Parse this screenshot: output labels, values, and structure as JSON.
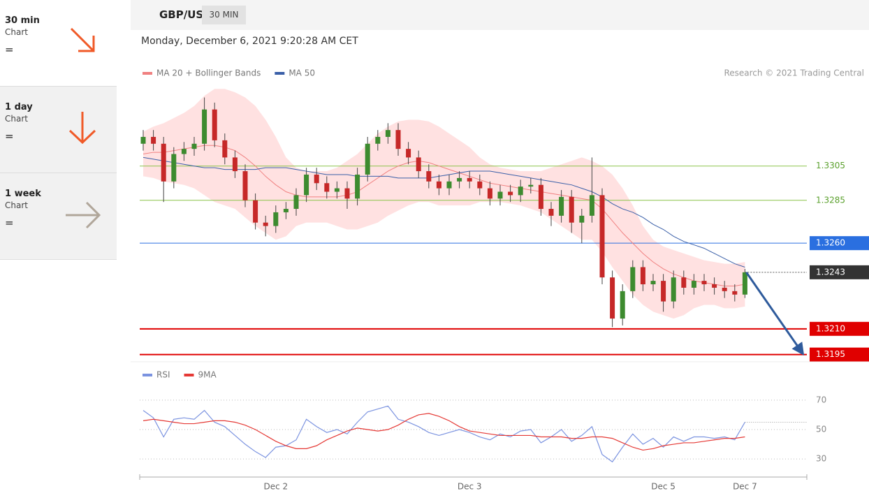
{
  "sidebar": {
    "items": [
      {
        "period": "30 min",
        "label": "Chart",
        "sign": "="
      },
      {
        "period": "1 day",
        "label": "Chart",
        "sign": "="
      },
      {
        "period": "1 week",
        "label": "Chart",
        "sign": "="
      }
    ]
  },
  "header": {
    "symbol": "GBP/USD",
    "interval": "30 MIN",
    "timestamp": "Monday, December 6, 2021 9:20:28 AM CET",
    "source": "Research © 2021 Trading Central"
  },
  "chart_data": [
    {
      "type": "candlestick",
      "ylim": [
        1.3192,
        1.3355
      ],
      "open": [
        1.3318,
        1.3322,
        1.3318,
        1.3296,
        1.3312,
        1.3315,
        1.3318,
        1.3338,
        1.332,
        1.331,
        1.3302,
        1.3285,
        1.3272,
        1.327,
        1.3278,
        1.328,
        1.3288,
        1.33,
        1.3295,
        1.329,
        1.3292,
        1.3286,
        1.33,
        1.3318,
        1.3322,
        1.3326,
        1.3315,
        1.331,
        1.3302,
        1.3296,
        1.3292,
        1.3296,
        1.3298,
        1.3296,
        1.3292,
        1.3286,
        1.329,
        1.3288,
        1.3293,
        1.3294,
        1.328,
        1.3276,
        1.3287,
        1.3272,
        1.3276,
        1.3288,
        1.324,
        1.3216,
        1.3232,
        1.3246,
        1.3236,
        1.3238,
        1.3226,
        1.324,
        1.3234,
        1.3238,
        1.3236,
        1.3234,
        1.3232,
        1.323
      ],
      "high": [
        1.3326,
        1.3326,
        1.3322,
        1.3316,
        1.3319,
        1.3322,
        1.3345,
        1.3342,
        1.3324,
        1.3314,
        1.3306,
        1.3289,
        1.3276,
        1.3282,
        1.3284,
        1.3292,
        1.3304,
        1.3304,
        1.3299,
        1.3296,
        1.3296,
        1.3304,
        1.3322,
        1.3326,
        1.333,
        1.333,
        1.3319,
        1.3314,
        1.3306,
        1.33,
        1.33,
        1.3302,
        1.3302,
        1.33,
        1.3296,
        1.3294,
        1.3294,
        1.3297,
        1.3298,
        1.3298,
        1.3284,
        1.3291,
        1.3291,
        1.328,
        1.331,
        1.3292,
        1.3244,
        1.3236,
        1.325,
        1.325,
        1.3242,
        1.3242,
        1.3244,
        1.3244,
        1.3242,
        1.3242,
        1.324,
        1.3238,
        1.3236,
        1.3245
      ],
      "low": [
        1.3314,
        1.3314,
        1.3284,
        1.3292,
        1.3308,
        1.3311,
        1.3314,
        1.3316,
        1.3306,
        1.3298,
        1.3281,
        1.3268,
        1.3264,
        1.3266,
        1.3274,
        1.3276,
        1.3284,
        1.3291,
        1.3286,
        1.3286,
        1.328,
        1.3282,
        1.3296,
        1.3314,
        1.3318,
        1.3311,
        1.3306,
        1.3298,
        1.3292,
        1.3288,
        1.3288,
        1.3292,
        1.3292,
        1.3288,
        1.3282,
        1.3282,
        1.3284,
        1.3284,
        1.3289,
        1.3276,
        1.327,
        1.3272,
        1.3266,
        1.326,
        1.3272,
        1.3236,
        1.3211,
        1.3212,
        1.3228,
        1.3232,
        1.3232,
        1.322,
        1.3222,
        1.323,
        1.323,
        1.3232,
        1.323,
        1.3228,
        1.3226,
        1.3228
      ],
      "close": [
        1.3322,
        1.3318,
        1.3296,
        1.3312,
        1.3315,
        1.3318,
        1.3338,
        1.332,
        1.331,
        1.3302,
        1.3285,
        1.3272,
        1.327,
        1.3278,
        1.328,
        1.3288,
        1.33,
        1.3295,
        1.329,
        1.3292,
        1.3286,
        1.33,
        1.3318,
        1.3322,
        1.3326,
        1.3315,
        1.331,
        1.3302,
        1.3296,
        1.3292,
        1.3296,
        1.3298,
        1.3296,
        1.3292,
        1.3286,
        1.329,
        1.3288,
        1.3293,
        1.3294,
        1.328,
        1.3276,
        1.3287,
        1.3272,
        1.3276,
        1.3288,
        1.324,
        1.3216,
        1.3232,
        1.3246,
        1.3236,
        1.3238,
        1.3226,
        1.324,
        1.3234,
        1.3238,
        1.3236,
        1.3234,
        1.3232,
        1.323,
        1.3243
      ],
      "up_color": "#3d8b2f",
      "down_color": "#c62828",
      "band": {
        "color": "#ffd9d9",
        "upper": [
          1.3325,
          1.3328,
          1.333,
          1.3333,
          1.3336,
          1.334,
          1.3346,
          1.335,
          1.335,
          1.3348,
          1.3345,
          1.334,
          1.3332,
          1.3322,
          1.331,
          1.3304,
          1.3302,
          1.3302,
          1.3302,
          1.3304,
          1.3308,
          1.3312,
          1.3318,
          1.3324,
          1.3328,
          1.3331,
          1.3332,
          1.3332,
          1.3331,
          1.3328,
          1.3324,
          1.332,
          1.3316,
          1.331,
          1.3306,
          1.3304,
          1.3303,
          1.3302,
          1.3302,
          1.3302,
          1.3304,
          1.3306,
          1.3308,
          1.331,
          1.3308,
          1.3305,
          1.33,
          1.3292,
          1.3282,
          1.327,
          1.3262,
          1.3258,
          1.3256,
          1.3254,
          1.3252,
          1.325,
          1.3249,
          1.3248,
          1.3248,
          1.3249
        ],
        "lower": [
          1.3299,
          1.3298,
          1.3296,
          1.3295,
          1.3294,
          1.3292,
          1.3288,
          1.3284,
          1.3282,
          1.328,
          1.3275,
          1.327,
          1.3266,
          1.3262,
          1.3264,
          1.327,
          1.3272,
          1.3272,
          1.3272,
          1.327,
          1.3268,
          1.3268,
          1.327,
          1.3272,
          1.3276,
          1.3279,
          1.3282,
          1.3284,
          1.3284,
          1.3282,
          1.3282,
          1.3282,
          1.3282,
          1.3284,
          1.3284,
          1.3284,
          1.3283,
          1.3282,
          1.328,
          1.3278,
          1.3274,
          1.327,
          1.3266,
          1.3262,
          1.3262,
          1.3255,
          1.3246,
          1.3238,
          1.323,
          1.3224,
          1.322,
          1.3218,
          1.3216,
          1.3218,
          1.3222,
          1.3224,
          1.3224,
          1.3222,
          1.3222,
          1.3223
        ]
      },
      "series": [
        {
          "name": "MA 20 + Bollinger Bands",
          "color": "#f08080",
          "values": [
            1.3312,
            1.3313,
            1.3313,
            1.3314,
            1.3315,
            1.3316,
            1.3317,
            1.3317,
            1.3316,
            1.3314,
            1.331,
            1.3305,
            1.3299,
            1.3294,
            1.329,
            1.3288,
            1.3287,
            1.3287,
            1.3287,
            1.3287,
            1.3288,
            1.329,
            1.3294,
            1.3298,
            1.3302,
            1.3305,
            1.3307,
            1.3308,
            1.3307,
            1.3305,
            1.3303,
            1.3301,
            1.3299,
            1.3297,
            1.3295,
            1.3294,
            1.3293,
            1.3292,
            1.3291,
            1.329,
            1.3289,
            1.3288,
            1.3287,
            1.3286,
            1.3285,
            1.328,
            1.3273,
            1.3266,
            1.326,
            1.3254,
            1.3249,
            1.3245,
            1.3242,
            1.324,
            1.3238,
            1.3237,
            1.3236,
            1.3235,
            1.3235,
            1.3236
          ]
        },
        {
          "name": "MA 50",
          "color": "#3a5fa8",
          "values": [
            1.331,
            1.3309,
            1.3308,
            1.3307,
            1.3306,
            1.3305,
            1.3304,
            1.3304,
            1.3303,
            1.3303,
            1.3303,
            1.3303,
            1.3304,
            1.3304,
            1.3304,
            1.3303,
            1.3302,
            1.3301,
            1.33,
            1.33,
            1.33,
            1.3299,
            1.3299,
            1.3299,
            1.3299,
            1.3298,
            1.3298,
            1.3298,
            1.3298,
            1.3299,
            1.33,
            1.3301,
            1.3302,
            1.3302,
            1.3302,
            1.3301,
            1.33,
            1.3299,
            1.3298,
            1.3297,
            1.3296,
            1.3295,
            1.3294,
            1.3292,
            1.329,
            1.3287,
            1.3283,
            1.328,
            1.3278,
            1.3275,
            1.3271,
            1.3268,
            1.3264,
            1.3261,
            1.3259,
            1.3257,
            1.3254,
            1.3251,
            1.3248,
            1.3246
          ]
        }
      ],
      "levels": [
        {
          "value": 1.3305,
          "color": "#8bc34a",
          "line": "solid",
          "box": false
        },
        {
          "value": 1.3285,
          "color": "#8bc34a",
          "line": "solid",
          "box": false
        },
        {
          "value": 1.326,
          "label": "1.3260",
          "color": "#2a6fe0",
          "line": "solid",
          "box": true
        },
        {
          "value": 1.3243,
          "color": "#333333",
          "line": "dotted",
          "box": true
        },
        {
          "value": 1.321,
          "label": "1.3210",
          "color": "#e00000",
          "line": "thick",
          "box": true
        },
        {
          "value": 1.3195,
          "color": "#e00000",
          "line": "thick",
          "box": true
        }
      ]
    },
    {
      "type": "line",
      "ylim": [
        21,
        79
      ],
      "yticks": [
        70,
        50,
        30
      ],
      "categories": [
        null,
        null,
        null,
        null,
        null,
        null,
        null,
        null,
        null,
        null,
        null,
        null,
        null,
        "Dec 2",
        null,
        null,
        null,
        null,
        null,
        null,
        null,
        null,
        null,
        null,
        null,
        null,
        null,
        null,
        null,
        null,
        null,
        null,
        "Dec 3",
        null,
        null,
        null,
        null,
        null,
        null,
        null,
        null,
        null,
        null,
        null,
        null,
        null,
        null,
        null,
        null,
        null,
        null,
        "Dec 5",
        null,
        null,
        null,
        null,
        null,
        null,
        null,
        "Dec 7"
      ],
      "series": [
        {
          "name": "RSI",
          "color": "#7b93e0",
          "values": [
            63,
            58,
            45,
            57,
            58,
            57,
            63,
            55,
            52,
            46,
            40,
            35,
            31,
            38,
            39,
            43,
            57,
            52,
            48,
            50,
            47,
            55,
            62,
            64,
            66,
            57,
            55,
            52,
            48,
            46,
            48,
            50,
            48,
            45,
            43,
            47,
            45,
            49,
            50,
            41,
            45,
            50,
            42,
            46,
            52,
            33,
            28,
            38,
            47,
            40,
            44,
            38,
            45,
            42,
            45,
            45,
            44,
            45,
            43,
            55
          ]
        },
        {
          "name": "9MA",
          "color": "#e53935",
          "values": [
            56,
            57,
            56,
            55,
            54,
            54,
            55,
            56,
            56,
            55,
            53,
            50,
            46,
            42,
            39,
            37,
            37,
            39,
            43,
            46,
            49,
            51,
            50,
            49,
            50,
            53,
            57,
            60,
            61,
            59,
            56,
            52,
            49,
            48,
            47,
            46,
            46,
            46,
            46,
            45,
            45,
            45,
            44,
            44,
            45,
            45,
            44,
            41,
            38,
            36,
            37,
            39,
            40,
            41,
            41,
            42,
            43,
            44,
            44,
            45
          ]
        }
      ]
    }
  ]
}
